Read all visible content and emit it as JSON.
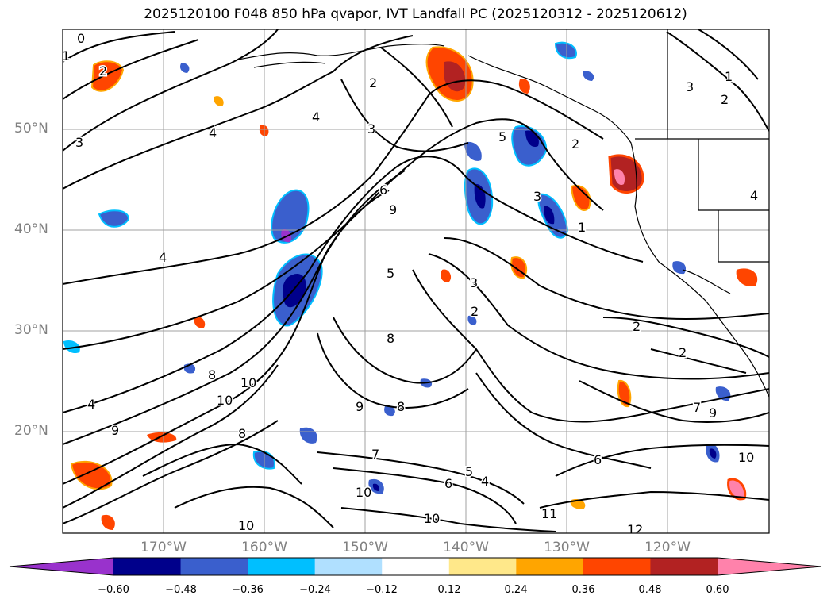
{
  "title": "2025120100 F048 850 hPa qvapor, IVT Landfall PC (2025120312 - 2025120612)",
  "lat_labels": [
    "50°N",
    "40°N",
    "30°N",
    "20°N"
  ],
  "lon_labels": [
    "170°W",
    "160°W",
    "150°W",
    "140°W",
    "130°W",
    "120°W"
  ],
  "colorbar": {
    "ticks": [
      "−0.60",
      "−0.48",
      "−0.36",
      "−0.24",
      "−0.12",
      "0.12",
      "0.24",
      "0.36",
      "0.48",
      "0.60"
    ],
    "colors": [
      "#9932cc",
      "#00008b",
      "#3a5fcd",
      "#00bfff",
      "#b0e0ff",
      "#ffffff",
      "#ffe88a",
      "#ffa500",
      "#ff4500",
      "#b22222",
      "#ff82ab"
    ]
  },
  "contour_labels": [
    {
      "text": "0"
    },
    {
      "text": "1"
    },
    {
      "text": "2"
    },
    {
      "text": "3"
    },
    {
      "text": "4"
    },
    {
      "text": "4"
    },
    {
      "text": "4"
    },
    {
      "text": "2"
    },
    {
      "text": "3"
    },
    {
      "text": "6"
    },
    {
      "text": "9"
    },
    {
      "text": "5"
    },
    {
      "text": "3"
    },
    {
      "text": "1"
    },
    {
      "text": "2"
    },
    {
      "text": "5"
    },
    {
      "text": "3"
    },
    {
      "text": "2"
    },
    {
      "text": "8"
    },
    {
      "text": "2"
    },
    {
      "text": "2"
    },
    {
      "text": "8"
    },
    {
      "text": "10"
    },
    {
      "text": "10"
    },
    {
      "text": "9"
    },
    {
      "text": "8"
    },
    {
      "text": "6"
    },
    {
      "text": "7"
    },
    {
      "text": "5"
    },
    {
      "text": "4"
    },
    {
      "text": "10"
    },
    {
      "text": "10"
    },
    {
      "text": "11"
    },
    {
      "text": "12"
    },
    {
      "text": "7"
    },
    {
      "text": "9"
    },
    {
      "text": "10"
    },
    {
      "text": "6"
    },
    {
      "text": "4"
    },
    {
      "text": "1"
    },
    {
      "text": "3"
    },
    {
      "text": "2"
    },
    {
      "text": "10"
    },
    {
      "text": "9"
    },
    {
      "text": "4"
    },
    {
      "text": "8"
    }
  ]
}
